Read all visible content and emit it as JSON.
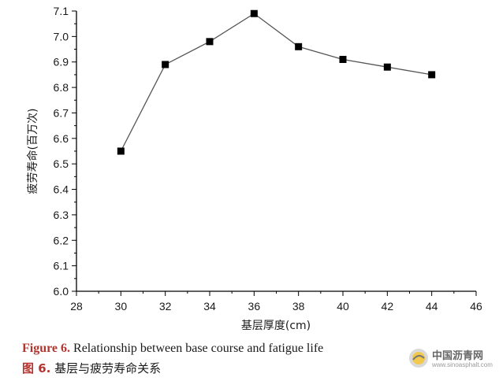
{
  "chart_data": {
    "type": "line",
    "x": [
      30,
      32,
      34,
      36,
      38,
      40,
      42,
      44
    ],
    "series": [
      {
        "values": [
          6.55,
          6.89,
          6.98,
          7.09,
          6.96,
          6.91,
          6.88,
          6.85
        ]
      }
    ],
    "xlabel": "基层厚度(cm)",
    "ylabel": "疲劳寿命(百万次)",
    "xlim": [
      28,
      46
    ],
    "ylim": [
      6.0,
      7.1
    ],
    "xticks": [
      "28",
      "30",
      "32",
      "34",
      "36",
      "38",
      "40",
      "42",
      "44",
      "46"
    ],
    "yticks": [
      "6.0",
      "6.1",
      "6.2",
      "6.3",
      "6.4",
      "6.5",
      "6.6",
      "6.7",
      "6.8",
      "6.9",
      "7.0",
      "7.1"
    ],
    "grid": false,
    "marker": "square",
    "line_color": "#555555",
    "marker_color": "#000000"
  },
  "caption": {
    "en_label": "Figure 6.",
    "en_text": " Relationship between base course and fatigue life",
    "zh_label": "图 6.",
    "zh_text": "  基层与疲劳寿命关系"
  },
  "watermark": {
    "name": "中国沥青网",
    "url": "www.sinoasphalt.com"
  }
}
